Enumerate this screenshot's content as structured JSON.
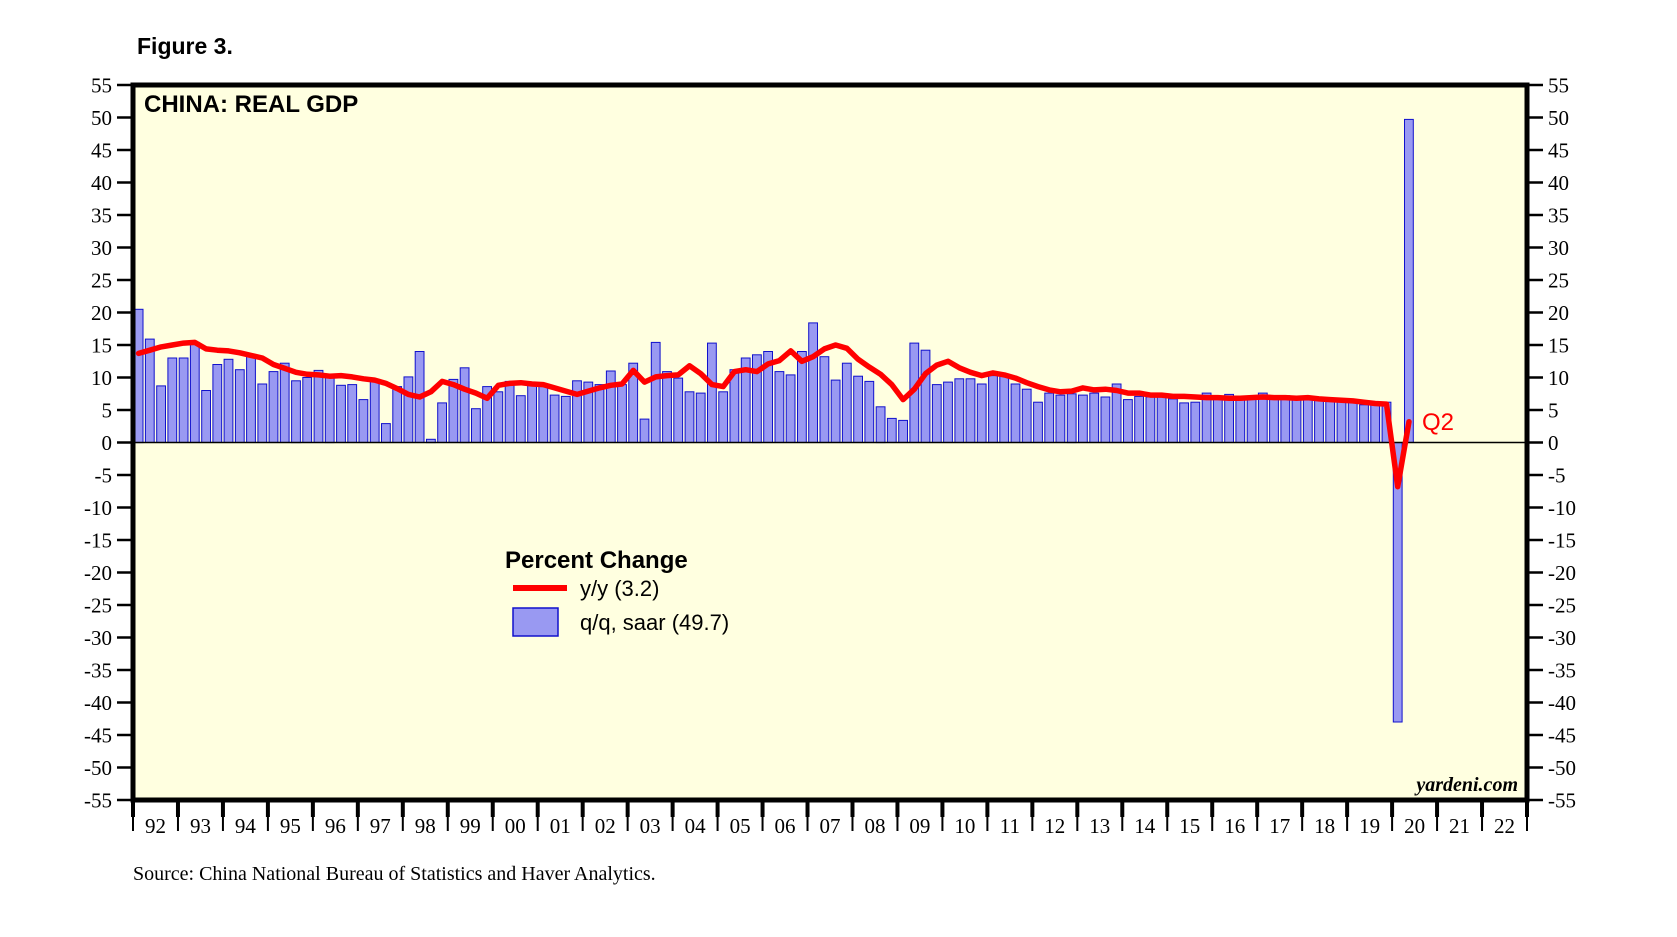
{
  "figure_label": "Figure 3.",
  "chart_title": "CHINA: REAL GDP",
  "annotation_q2": "Q2",
  "watermark": "yardeni.com",
  "source_note": "Source: China National Bureau of Statistics and Haver Analytics.",
  "legend": {
    "title": "Percent Change",
    "line_label": "y/y (3.2)",
    "bar_label": "q/q, saar (49.7)"
  },
  "colors": {
    "plot_background": "#FFFFE0",
    "bar_fill": "#9999F2",
    "bar_border": "#1111CC",
    "line": "#FF0000",
    "axis": "#000000"
  },
  "chart_data": {
    "type": "bar+line",
    "title": "CHINA: REAL GDP",
    "ylabel": "Percent Change",
    "ylim": [
      -55,
      55
    ],
    "y_tick_step": 5,
    "y_ticks": [
      55,
      50,
      45,
      40,
      35,
      30,
      25,
      20,
      15,
      10,
      5,
      0,
      -5,
      -10,
      -15,
      -20,
      -25,
      -30,
      -35,
      -40,
      -45,
      -50,
      -55
    ],
    "x_start_year": 1992,
    "x_end_year": 2022,
    "x_tick_labels": [
      "92",
      "93",
      "94",
      "95",
      "96",
      "97",
      "98",
      "99",
      "00",
      "01",
      "02",
      "03",
      "04",
      "05",
      "06",
      "07",
      "08",
      "09",
      "10",
      "11",
      "12",
      "13",
      "14",
      "15",
      "16",
      "17",
      "18",
      "19",
      "20",
      "21",
      "22"
    ],
    "quarters_start": "1992Q1",
    "quarters_end": "2020Q2",
    "legend_position": "center-bottom",
    "grid": false,
    "series": [
      {
        "name": "y/y",
        "type": "line",
        "latest_value": 3.2,
        "values": [
          13.7,
          14.2,
          14.7,
          15.0,
          15.3,
          15.4,
          14.4,
          14.2,
          14.1,
          13.8,
          13.4,
          13.0,
          12.0,
          11.4,
          10.8,
          10.5,
          10.4,
          10.2,
          10.3,
          10.1,
          9.8,
          9.6,
          9.1,
          8.3,
          7.4,
          7.0,
          7.8,
          9.4,
          8.9,
          8.2,
          7.6,
          6.8,
          8.8,
          9.1,
          9.2,
          9.0,
          8.9,
          8.4,
          7.9,
          7.4,
          7.9,
          8.4,
          8.8,
          9.0,
          11.1,
          9.3,
          10.1,
          10.3,
          10.4,
          11.8,
          10.6,
          8.9,
          8.6,
          10.9,
          11.2,
          10.9,
          12.1,
          12.6,
          14.1,
          12.5,
          13.2,
          14.4,
          15.0,
          14.5,
          12.8,
          11.6,
          10.5,
          8.9,
          6.6,
          8.2,
          10.6,
          11.9,
          12.5,
          11.5,
          10.8,
          10.3,
          10.7,
          10.4,
          9.9,
          9.2,
          8.6,
          8.1,
          7.8,
          7.9,
          8.4,
          8.1,
          8.2,
          8.0,
          7.6,
          7.6,
          7.3,
          7.3,
          7.1,
          7.1,
          7.0,
          6.9,
          6.9,
          6.8,
          6.8,
          6.9,
          7.0,
          6.9,
          6.9,
          6.8,
          6.9,
          6.7,
          6.6,
          6.5,
          6.4,
          6.2,
          6.0,
          5.9,
          -6.8,
          3.2
        ]
      },
      {
        "name": "q/q, saar",
        "type": "bar",
        "latest_value": 49.7,
        "values": [
          20.5,
          15.9,
          8.7,
          13.0,
          13.0,
          15.4,
          8.0,
          12.0,
          12.8,
          11.2,
          13.2,
          9.0,
          10.9,
          12.2,
          9.5,
          10.0,
          11.1,
          10.5,
          8.8,
          8.9,
          6.6,
          9.6,
          2.9,
          8.6,
          10.1,
          14.0,
          0.5,
          6.1,
          9.7,
          11.5,
          5.2,
          8.6,
          7.8,
          9.4,
          7.2,
          9.2,
          8.9,
          7.3,
          7.1,
          9.5,
          9.3,
          8.9,
          11.0,
          8.9,
          12.2,
          3.6,
          15.4,
          10.9,
          9.9,
          7.8,
          7.6,
          15.3,
          7.8,
          11.2,
          13.0,
          13.5,
          14.0,
          10.9,
          10.4,
          14.0,
          18.4,
          13.2,
          9.6,
          12.2,
          10.2,
          9.4,
          5.5,
          3.7,
          3.4,
          15.3,
          14.2,
          8.9,
          9.3,
          9.8,
          9.8,
          9.0,
          10.3,
          10.3,
          9.0,
          8.2,
          6.2,
          7.6,
          7.3,
          7.5,
          7.3,
          7.6,
          7.0,
          9.0,
          6.6,
          7.1,
          7.0,
          7.2,
          6.7,
          6.1,
          6.2,
          7.6,
          6.8,
          7.4,
          6.7,
          7.0,
          7.6,
          7.0,
          7.2,
          6.7,
          6.6,
          7.0,
          6.6,
          6.3,
          6.2,
          5.8,
          6.0,
          6.2,
          -43.0,
          49.7
        ]
      }
    ]
  }
}
